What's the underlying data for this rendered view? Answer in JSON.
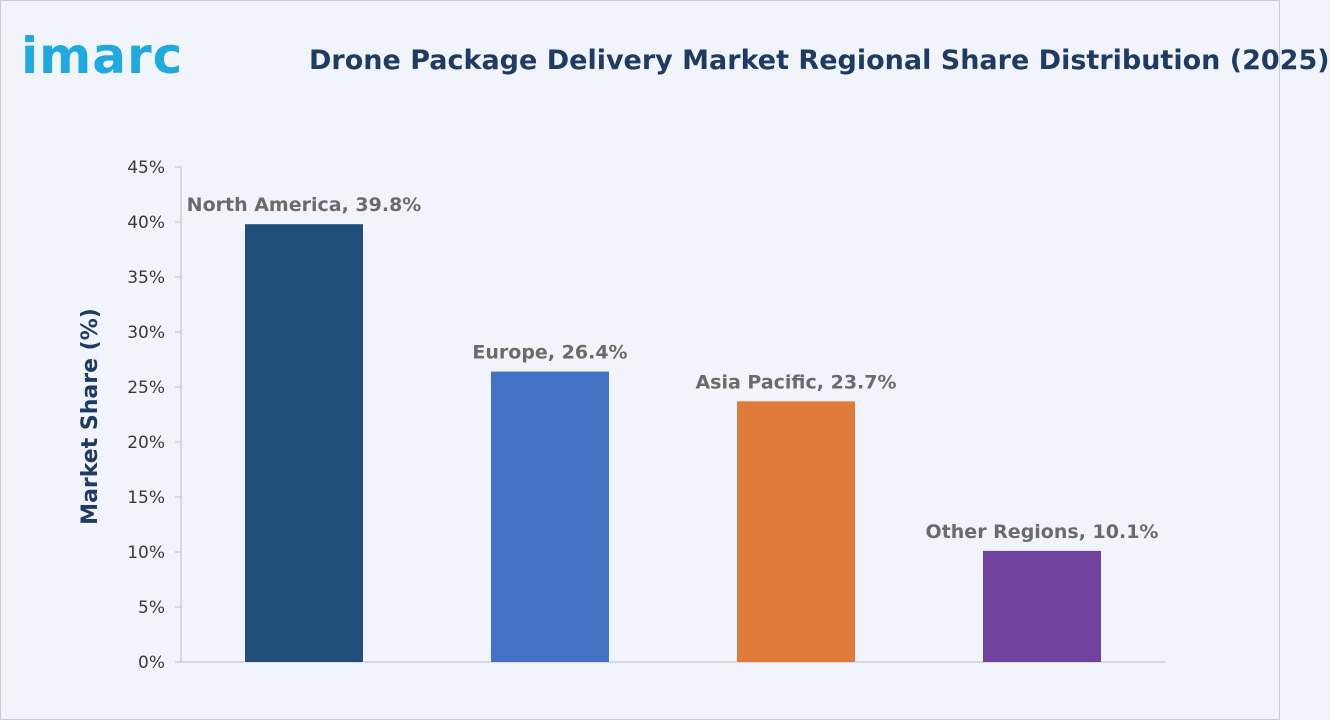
{
  "header": {
    "logo_text": "imarc",
    "title": "Drone Package Delivery Market Regional Share Distribution (2025)"
  },
  "chart_data": {
    "type": "bar",
    "title": "Drone Package Delivery Market Regional Share Distribution (2025)",
    "xlabel": "",
    "ylabel": "Market Share (%)",
    "ylim": [
      0,
      45
    ],
    "y_ticks": [
      "0%",
      "5%",
      "10%",
      "15%",
      "20%",
      "25%",
      "30%",
      "35%",
      "40%",
      "45%"
    ],
    "categories": [
      "North America",
      "Europe",
      "Asia Pacific",
      "Other Regions"
    ],
    "values": [
      39.8,
      26.4,
      23.7,
      10.1
    ],
    "data_labels": [
      "North America, 39.8%",
      "Europe, 26.4%",
      "Asia Pacific, 23.7%",
      "Other Regions, 10.1%"
    ],
    "colors": [
      "#1f4e79",
      "#4472c4",
      "#e07b39",
      "#7042a0"
    ],
    "grid": false,
    "legend": "none"
  }
}
